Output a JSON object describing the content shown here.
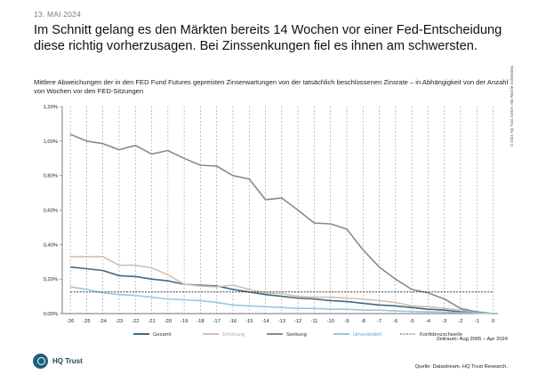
{
  "header": {
    "date": "13. MAI 2024",
    "headline": "Im Schnitt gelang es den Märkten bereits 14 Wochen vor einer Fed-Entscheidung diese richtig vorherzusagen. Bei Zinssenkungen fiel es ihnen am schwersten."
  },
  "copyright": "© 2024 HQ Trust GmbH. Alle Rechte vorbehalten.",
  "chart_data": {
    "type": "line",
    "title": "Mittlere Abweichungen der in den FED Fund Futures gepreisten Zinserwartungen von der tatsächlich beschlossenen Zinsrate – in Abhängigkeit von der Anzahl von Wochen vor den FED-Sitzungen",
    "xlabel": "",
    "ylabel": "",
    "x": [
      -26,
      -25,
      -24,
      -23,
      -22,
      -21,
      -20,
      -19,
      -18,
      -17,
      -16,
      -15,
      -14,
      -13,
      -12,
      -11,
      -10,
      -9,
      -8,
      -7,
      -6,
      -5,
      -4,
      -3,
      -2,
      -1,
      0
    ],
    "x_ticks": [
      "-26",
      "-25",
      "-24",
      "-23",
      "-22",
      "-21",
      "-20",
      "-19",
      "-18",
      "-17",
      "-16",
      "-15",
      "-14",
      "-13",
      "-12",
      "-11",
      "-10",
      "-9",
      "-8",
      "-7",
      "-6",
      "-5",
      "-4",
      "-3",
      "-2",
      "-1",
      "0"
    ],
    "xlim": [
      -26.5,
      0.3
    ],
    "ylim": [
      0,
      1.2
    ],
    "y_ticks": [
      "0,00%",
      "0,20%",
      "0,40%",
      "0,60%",
      "0,80%",
      "1,00%",
      "1,20%"
    ],
    "grid": "vertical dashed",
    "legend_position": "bottom",
    "series": [
      {
        "name": "Gesamt",
        "color": "#3d6a85",
        "style": "solid",
        "values": [
          0.27,
          0.26,
          0.25,
          0.22,
          0.215,
          0.2,
          0.19,
          0.17,
          0.165,
          0.16,
          0.14,
          0.125,
          0.11,
          0.1,
          0.09,
          0.085,
          0.075,
          0.07,
          0.06,
          0.05,
          0.045,
          0.035,
          0.025,
          0.02,
          0.01,
          0.005,
          0.0
        ]
      },
      {
        "name": "Erhöhung",
        "color": "#d4bfb0",
        "style": "solid",
        "values": [
          0.33,
          0.33,
          0.33,
          0.28,
          0.28,
          0.265,
          0.225,
          0.17,
          0.16,
          0.155,
          0.165,
          0.14,
          0.12,
          0.115,
          0.1,
          0.095,
          0.095,
          0.09,
          0.085,
          0.075,
          0.065,
          0.045,
          0.04,
          0.03,
          0.02,
          0.01,
          0.0
        ]
      },
      {
        "name": "Senkung",
        "color": "#8a8a8a",
        "style": "solid",
        "values": [
          1.04,
          1.0,
          0.985,
          0.95,
          0.975,
          0.925,
          0.945,
          0.9,
          0.86,
          0.855,
          0.8,
          0.78,
          0.66,
          0.67,
          0.6,
          0.525,
          0.52,
          0.49,
          0.37,
          0.27,
          0.2,
          0.14,
          0.12,
          0.085,
          0.03,
          0.01,
          0.0
        ]
      },
      {
        "name": "Unverändert",
        "color": "#9fc6dc",
        "style": "solid",
        "values": [
          0.155,
          0.14,
          0.12,
          0.11,
          0.105,
          0.095,
          0.085,
          0.08,
          0.075,
          0.065,
          0.05,
          0.045,
          0.04,
          0.035,
          0.03,
          0.03,
          0.025,
          0.025,
          0.02,
          0.02,
          0.015,
          0.012,
          0.01,
          0.008,
          0.005,
          0.003,
          0.0
        ]
      },
      {
        "name": "Konfidenzschwelle",
        "color": "#222222",
        "style": "dashed",
        "values": [
          0.125,
          0.125,
          0.125,
          0.125,
          0.125,
          0.125,
          0.125,
          0.125,
          0.125,
          0.125,
          0.125,
          0.125,
          0.125,
          0.125,
          0.125,
          0.125,
          0.125,
          0.125,
          0.125,
          0.125,
          0.125,
          0.125,
          0.125,
          0.125,
          0.125,
          0.125,
          0.125
        ]
      }
    ]
  },
  "footer": {
    "zeitraum": "Zeitraum: Aug 2005 – Apr 2024",
    "logo_text": "HQ Trust",
    "source": "Quelle: Datastream, HQ Trust Research."
  }
}
